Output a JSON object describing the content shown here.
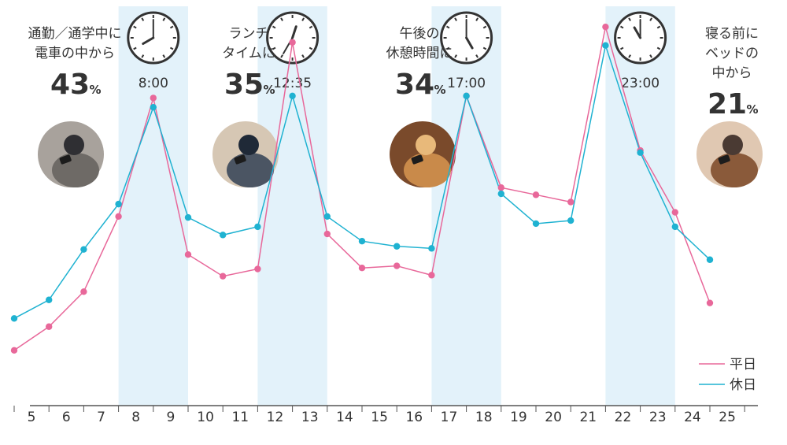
{
  "chart_data": {
    "type": "line",
    "categories": [
      "5",
      "6",
      "7",
      "8",
      "9",
      "10",
      "11",
      "12",
      "13",
      "14",
      "15",
      "16",
      "17",
      "18",
      "19",
      "20",
      "21",
      "22",
      "23",
      "24",
      "25"
    ],
    "x": [
      4.5,
      5.5,
      6.5,
      7.5,
      8.5,
      9.5,
      10.5,
      11.5,
      12.5,
      13.5,
      14.5,
      15.5,
      16.5,
      17.5,
      18.5,
      19.5,
      20.5,
      21.5,
      22.5,
      23.5,
      24.5,
      25.5
    ],
    "series": [
      {
        "name": "平日",
        "color": "#e8689a",
        "values": [
          6,
          29,
          63,
          136,
          251,
          99,
          78,
          85,
          305,
          119,
          86,
          88,
          79,
          253,
          164,
          157,
          150,
          320,
          200,
          140,
          52
        ]
      },
      {
        "name": "休日",
        "color": "#1fb2d1",
        "values": [
          37,
          55,
          104,
          148,
          242,
          135,
          118,
          126,
          253,
          136,
          112,
          107,
          105,
          253,
          158,
          129,
          132,
          302,
          198,
          126,
          94
        ]
      }
    ],
    "ylim": [
      -40,
      340
    ],
    "grid": false,
    "legend": "bottom-right",
    "highlight_bands": [
      [
        7.5,
        9.5
      ],
      [
        11.5,
        13.5
      ],
      [
        16.5,
        18.5
      ],
      [
        21.5,
        23.5
      ]
    ],
    "band_color": "#e3f2fa",
    "clocks": [
      {
        "time": "8:00",
        "center_x": 8.5,
        "hour_angle": 240,
        "minute_angle": 0
      },
      {
        "time": "12:35",
        "center_x": 12.5,
        "hour_angle": 18,
        "minute_angle": 210
      },
      {
        "time": "17:00",
        "center_x": 17.5,
        "hour_angle": 150,
        "minute_angle": 0
      },
      {
        "time": "23:00",
        "center_x": 22.5,
        "hour_angle": 330,
        "minute_angle": 0
      }
    ],
    "annotations": [
      {
        "lines": [
          "通勤／通学中に",
          "電車の中から"
        ],
        "value": "43",
        "unit": "%"
      },
      {
        "lines": [
          "ランチ",
          "タイムに"
        ],
        "value": "35",
        "unit": "%"
      },
      {
        "lines": [
          "午後の",
          "休憩時間に"
        ],
        "value": "34",
        "unit": "%"
      },
      {
        "lines": [
          "寝る前に",
          "ベッドの",
          "中から"
        ],
        "value": "21",
        "unit": "%"
      }
    ],
    "photos": [
      {
        "icon": "commuter-phone-icon"
      },
      {
        "icon": "lunch-phone-icon"
      },
      {
        "icon": "cafe-phone-icon"
      },
      {
        "icon": "bed-phone-icon"
      }
    ]
  }
}
